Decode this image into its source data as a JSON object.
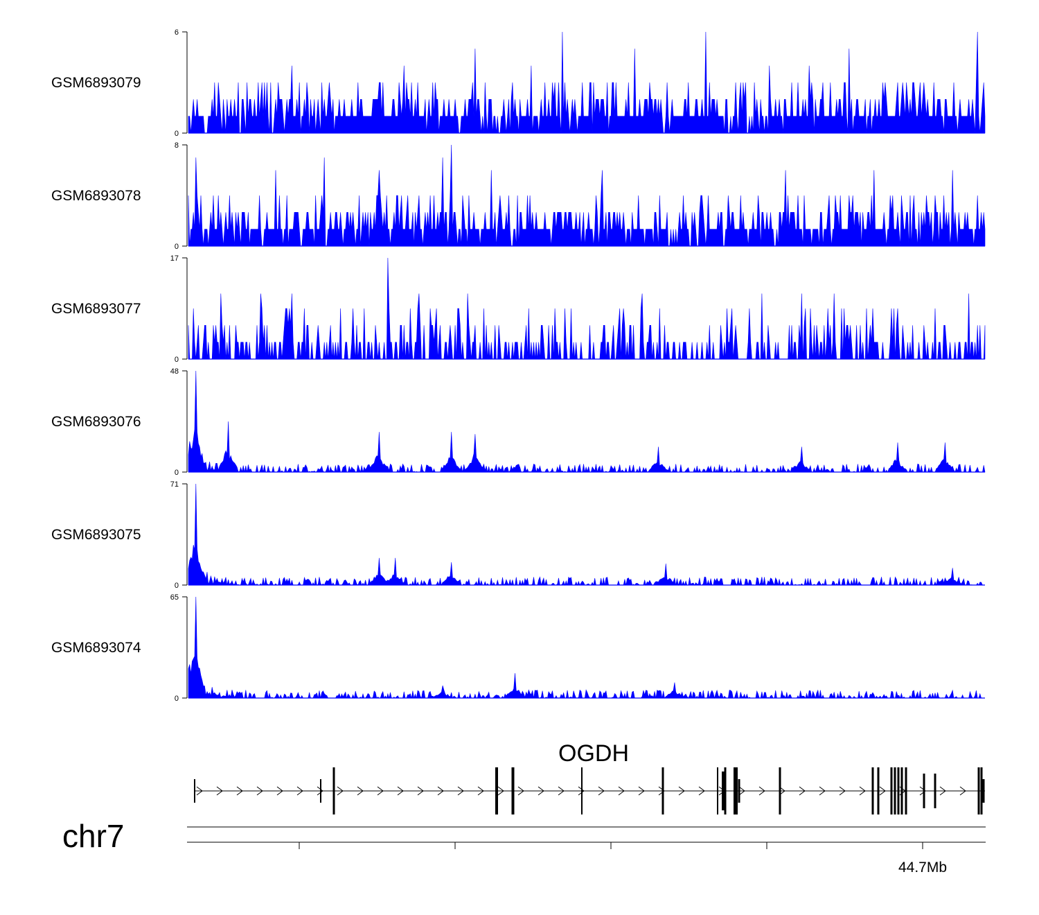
{
  "chart_data": {
    "type": "area",
    "chromosome": "chr7",
    "gene": "OGDH",
    "fill_color": "#0000ff",
    "axis_label": "44.7Mb",
    "tracks": [
      {
        "name": "GSM6893079",
        "ymax": 6,
        "ymin": 0,
        "peaks": [
          [
            0.47,
            6
          ],
          [
            0.65,
            6
          ],
          [
            0.36,
            5
          ],
          [
            0.56,
            5
          ],
          [
            0.99,
            6
          ],
          [
            0.83,
            5
          ],
          [
            0.13,
            4
          ],
          [
            0.27,
            4
          ],
          [
            0.43,
            4
          ],
          [
            0.73,
            4
          ],
          [
            0.78,
            4
          ]
        ]
      },
      {
        "name": "GSM6893078",
        "ymax": 8,
        "ymin": 0,
        "peaks": [
          [
            0.33,
            8
          ],
          [
            0.32,
            7
          ],
          [
            0.01,
            7
          ],
          [
            0.17,
            7
          ],
          [
            0.11,
            6
          ],
          [
            0.24,
            6
          ],
          [
            0.38,
            6
          ],
          [
            0.52,
            6
          ],
          [
            0.75,
            6
          ],
          [
            0.86,
            6
          ],
          [
            0.96,
            6
          ]
        ]
      },
      {
        "name": "GSM6893077",
        "ymax": 17,
        "ymin": 0,
        "peaks": [
          [
            0.25,
            17
          ],
          [
            0.04,
            11
          ],
          [
            0.09,
            11
          ],
          [
            0.13,
            11
          ],
          [
            0.29,
            11
          ],
          [
            0.35,
            11
          ],
          [
            0.57,
            11
          ],
          [
            0.72,
            11
          ],
          [
            0.77,
            11
          ],
          [
            0.81,
            11
          ],
          [
            0.98,
            11
          ]
        ]
      },
      {
        "name": "GSM6893076",
        "ymax": 48,
        "ymin": 0,
        "peaks": [
          [
            0.01,
            48
          ],
          [
            0.05,
            24
          ],
          [
            0.24,
            19
          ],
          [
            0.33,
            19
          ],
          [
            0.36,
            18
          ],
          [
            0.59,
            12
          ],
          [
            0.77,
            12
          ],
          [
            0.89,
            14
          ],
          [
            0.95,
            14
          ]
        ]
      },
      {
        "name": "GSM6893075",
        "ymax": 71,
        "ymin": 0,
        "peaks": [
          [
            0.01,
            71
          ],
          [
            0.24,
            19
          ],
          [
            0.26,
            19
          ],
          [
            0.33,
            16
          ],
          [
            0.6,
            15
          ],
          [
            0.96,
            12
          ]
        ]
      },
      {
        "name": "GSM6893074",
        "ymax": 65,
        "ymin": 0,
        "peaks": [
          [
            0.01,
            65
          ],
          [
            0.41,
            16
          ],
          [
            0.61,
            10
          ],
          [
            0.32,
            8
          ]
        ]
      }
    ]
  }
}
